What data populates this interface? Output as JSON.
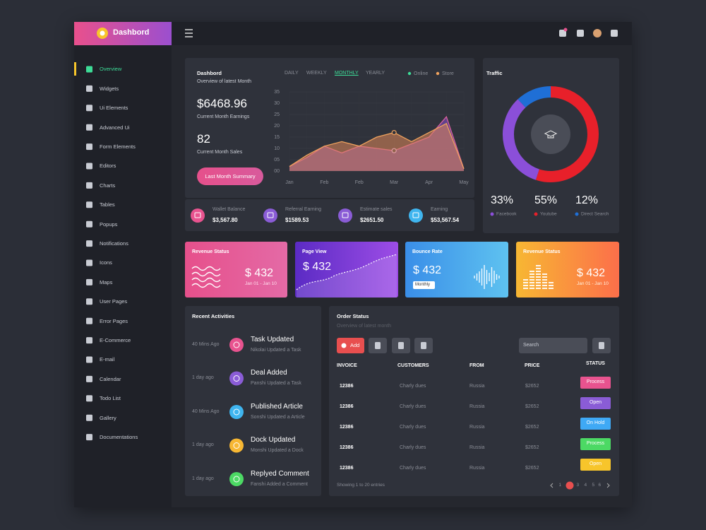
{
  "brand": "Dashbord",
  "sidebar": [
    "Overview",
    "Widgets",
    "Ui Elements",
    "Advanced Ui",
    "Form Elements",
    "Editors",
    "Charts",
    "Tables",
    "Popups",
    "Notifications",
    "Icons",
    "Maps",
    "User Pages",
    "Error Pages",
    "E-Commerce",
    "E-mail",
    "Calendar",
    "Todo List",
    "Gallery",
    "Documentations"
  ],
  "overview": {
    "title": "Dashbord",
    "subtitle": "Overview of latest Month",
    "earnings": "$6468.96",
    "earnings_label": "Current Month Earnings",
    "sales": "82",
    "sales_label": "Current Month Sales",
    "button": "Last Month Summary",
    "tabs": [
      "DAILY",
      "WEEKLY",
      "MONTHLY",
      "YEARLY"
    ]
  },
  "chart_data": [
    {
      "type": "area",
      "categories": [
        "Jan",
        null,
        "Feb",
        null,
        "Feb",
        null,
        "Mar",
        null,
        "Apr",
        null,
        "May"
      ],
      "series": [
        {
          "name": "Online",
          "color": "#3ddc97",
          "fill": "#8a4fd0",
          "values": [
            2,
            6,
            11,
            8,
            11,
            10,
            9,
            12,
            15,
            24,
            1
          ]
        },
        {
          "name": "Store",
          "color": "#f0a35e",
          "fill": "#e0885a",
          "values": [
            2,
            7,
            11,
            13,
            11,
            15,
            17,
            13,
            17,
            21,
            1
          ]
        }
      ],
      "ylim": [
        0,
        35
      ],
      "yticks": [
        {
          "value": 0,
          "label": "00"
        },
        {
          "value": 5,
          "label": "05"
        },
        10,
        15,
        20,
        25,
        30,
        35
      ],
      "grid": true
    },
    {
      "type": "donut",
      "title": "Traffic",
      "categories": [
        "Facebook",
        "Youtube",
        "Direct Search"
      ],
      "values": [
        33,
        55,
        12
      ],
      "value_labels": [
        "33%",
        "55%",
        "12%"
      ],
      "colors": [
        "#8b4fd9",
        "#e8202a",
        "#1f6fd6"
      ]
    }
  ],
  "stats": [
    {
      "label": "Wallet Balance",
      "value": "$3,567.80"
    },
    {
      "label": "Referral Earning",
      "value": "$1589.53"
    },
    {
      "label": "Estimate sales",
      "value": "$2651.50"
    },
    {
      "label": "Earning",
      "value": "$53,567.54"
    }
  ],
  "cards": [
    {
      "title": "Revenue Status",
      "value": "$ 432",
      "sub": "Jan 01 - Jan 10"
    },
    {
      "title": "Page View",
      "value": "$ 432"
    },
    {
      "title": "Bounce Rate",
      "value": "$ 432",
      "select": "Monthly"
    },
    {
      "title": "Revenue Status",
      "value": "$ 432",
      "sub": "Jan 01 - Jan 10"
    }
  ],
  "activities": {
    "title": "Recent Activities",
    "items": [
      {
        "time": "40 Mins Ago",
        "title": "Task Updated",
        "sub": "Nikolai Updated a Task"
      },
      {
        "time": "1 day ago",
        "title": "Deal Added",
        "sub": "Panshi Updated a Task"
      },
      {
        "time": "40 Mins Ago",
        "title": "Published Article",
        "sub": "Sonshi Updated a Article"
      },
      {
        "time": "1 day ago",
        "title": "Dock Updated",
        "sub": "Monshi Updated a Dock"
      },
      {
        "time": "1 day ago",
        "title": "Replyed Comment",
        "sub": "Fanshi Added a Comment"
      }
    ]
  },
  "orders": {
    "title": "Order Status",
    "subtitle": "Overview of latest month",
    "add": "Add",
    "search": "Search",
    "columns": [
      "INVOICE",
      "CUSTOMERS",
      "FROM",
      "PRICE",
      "STATUS"
    ],
    "rows": [
      [
        "12386",
        "Charly dues",
        "Russia",
        "$2652",
        "Process"
      ],
      [
        "12386",
        "Charly dues",
        "Russia",
        "$2652",
        "Open"
      ],
      [
        "12386",
        "Charly dues",
        "Russia",
        "$2652",
        "On Hold"
      ],
      [
        "12386",
        "Charly dues",
        "Russia",
        "$2652",
        "Process"
      ],
      [
        "12386",
        "Charly dues",
        "Russia",
        "$2652",
        "Open"
      ]
    ],
    "status_colors": [
      "#e8538f",
      "#8a5cd6",
      "#3fa9f5",
      "#4cd964",
      "#f7c52b"
    ],
    "footer": "Showing 1 to 20 entries",
    "pages": [
      "1",
      "2",
      "3",
      "4",
      "5",
      "6"
    ]
  }
}
